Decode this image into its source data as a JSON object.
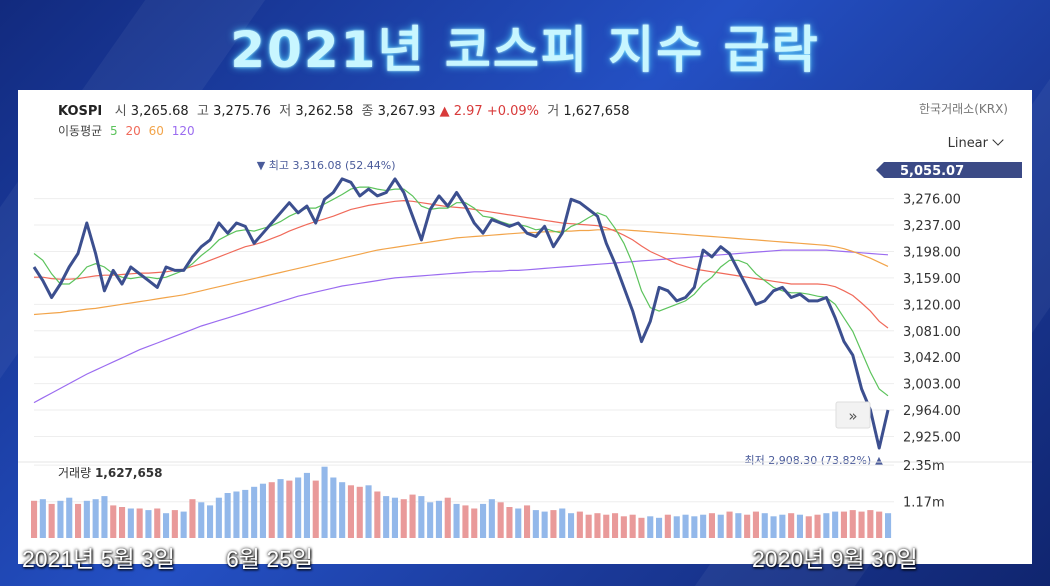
{
  "title": "2021년 코스피 지수 급락",
  "header": {
    "name": "KOSPI",
    "open_label": "시",
    "open": "3,265.68",
    "high_label": "고",
    "high": "3,275.76",
    "low_label": "저",
    "low": "3,262.58",
    "close_label": "종",
    "close": "3,267.93",
    "change": "▲ 2.97 +0.09%",
    "volume_label": "거",
    "volume": "1,627,658",
    "source": "한국거래소(KRX)"
  },
  "ma_legend": {
    "label": "이동평균",
    "items": [
      "5",
      "20",
      "60",
      "120"
    ],
    "colors": [
      "#5cc35c",
      "#f06a5a",
      "#f2a44a",
      "#9b6cf0"
    ]
  },
  "scale_mode": "Linear",
  "captions": {
    "start": "2021년 5월 3일",
    "mid": "6월 25일",
    "end": "2020년 9월 30일"
  },
  "chart_data": {
    "type": "line",
    "price_ticks": [
      "3,276.00",
      "3,237.00",
      "3,198.00",
      "3,159.00",
      "3,120.00",
      "3,081.00",
      "3,042.00",
      "3,003.00",
      "2,964.00",
      "2,925.00"
    ],
    "price_tick_values": [
      3276,
      3237,
      3198,
      3159,
      3120,
      3081,
      3042,
      3003,
      2964,
      2925
    ],
    "current_label": "5,055.07",
    "max_label": "▼ 최고 3,316.08 (52.44%)",
    "min_label": "최저 2,908.30 (73.82%) ▲",
    "ylim": [
      2908,
      3330
    ],
    "close": [
      3175,
      3155,
      3130,
      3150,
      3175,
      3195,
      3240,
      3195,
      3140,
      3170,
      3150,
      3175,
      3165,
      3155,
      3145,
      3175,
      3170,
      3170,
      3190,
      3205,
      3215,
      3240,
      3225,
      3240,
      3235,
      3210,
      3225,
      3240,
      3255,
      3270,
      3255,
      3265,
      3240,
      3275,
      3285,
      3305,
      3300,
      3280,
      3290,
      3280,
      3285,
      3305,
      3285,
      3250,
      3215,
      3260,
      3280,
      3265,
      3285,
      3265,
      3240,
      3225,
      3245,
      3240,
      3235,
      3240,
      3225,
      3220,
      3235,
      3205,
      3225,
      3275,
      3270,
      3260,
      3250,
      3210,
      3180,
      3145,
      3110,
      3065,
      3095,
      3145,
      3140,
      3125,
      3130,
      3145,
      3200,
      3190,
      3205,
      3195,
      3170,
      3145,
      3120,
      3125,
      3140,
      3145,
      3130,
      3135,
      3125,
      3125,
      3130,
      3100,
      3065,
      3045,
      2995,
      2964,
      2908,
      2964
    ],
    "ma5": [
      3195,
      3185,
      3165,
      3150,
      3150,
      3160,
      3175,
      3180,
      3175,
      3165,
      3160,
      3158,
      3160,
      3160,
      3158,
      3160,
      3165,
      3170,
      3180,
      3192,
      3202,
      3215,
      3222,
      3228,
      3230,
      3228,
      3232,
      3236,
      3242,
      3250,
      3256,
      3262,
      3262,
      3268,
      3275,
      3282,
      3290,
      3293,
      3293,
      3290,
      3288,
      3290,
      3290,
      3280,
      3265,
      3260,
      3262,
      3262,
      3270,
      3270,
      3262,
      3250,
      3248,
      3242,
      3238,
      3238,
      3235,
      3230,
      3232,
      3228,
      3225,
      3235,
      3240,
      3248,
      3255,
      3250,
      3232,
      3210,
      3180,
      3140,
      3115,
      3110,
      3115,
      3120,
      3125,
      3135,
      3150,
      3160,
      3175,
      3185,
      3185,
      3180,
      3165,
      3155,
      3145,
      3140,
      3137,
      3137,
      3135,
      3132,
      3130,
      3120,
      3100,
      3080,
      3050,
      3020,
      2995,
      2985
    ],
    "ma20": [
      3160,
      3160,
      3158,
      3157,
      3157,
      3158,
      3160,
      3162,
      3163,
      3163,
      3164,
      3165,
      3166,
      3166,
      3167,
      3168,
      3170,
      3172,
      3176,
      3180,
      3185,
      3190,
      3195,
      3200,
      3205,
      3208,
      3212,
      3217,
      3222,
      3228,
      3233,
      3238,
      3242,
      3246,
      3250,
      3255,
      3260,
      3263,
      3266,
      3268,
      3270,
      3272,
      3273,
      3272,
      3270,
      3268,
      3266,
      3264,
      3263,
      3262,
      3260,
      3258,
      3256,
      3254,
      3252,
      3250,
      3248,
      3246,
      3244,
      3242,
      3240,
      3239,
      3238,
      3237,
      3236,
      3233,
      3228,
      3222,
      3215,
      3206,
      3198,
      3192,
      3186,
      3180,
      3176,
      3172,
      3170,
      3168,
      3166,
      3164,
      3162,
      3160,
      3158,
      3156,
      3154,
      3152,
      3150,
      3150,
      3150,
      3150,
      3149,
      3146,
      3140,
      3133,
      3122,
      3110,
      3095,
      3085
    ],
    "ma60": [
      3105,
      3106,
      3107,
      3108,
      3110,
      3111,
      3113,
      3114,
      3116,
      3118,
      3120,
      3122,
      3124,
      3126,
      3128,
      3130,
      3132,
      3134,
      3137,
      3140,
      3143,
      3146,
      3149,
      3152,
      3155,
      3158,
      3161,
      3164,
      3167,
      3170,
      3173,
      3176,
      3179,
      3182,
      3185,
      3188,
      3191,
      3194,
      3197,
      3200,
      3202,
      3204,
      3206,
      3208,
      3210,
      3212,
      3214,
      3216,
      3218,
      3219,
      3220,
      3221,
      3222,
      3223,
      3224,
      3225,
      3226,
      3226,
      3227,
      3227,
      3228,
      3228,
      3229,
      3229,
      3230,
      3230,
      3230,
      3230,
      3229,
      3228,
      3227,
      3226,
      3225,
      3224,
      3223,
      3222,
      3221,
      3220,
      3219,
      3218,
      3217,
      3216,
      3215,
      3214,
      3213,
      3212,
      3211,
      3210,
      3209,
      3208,
      3207,
      3205,
      3202,
      3198,
      3193,
      3188,
      3182,
      3176
    ],
    "ma120": [
      2975,
      2982,
      2989,
      2996,
      3003,
      3010,
      3017,
      3023,
      3029,
      3035,
      3041,
      3047,
      3053,
      3058,
      3063,
      3068,
      3073,
      3078,
      3083,
      3088,
      3092,
      3096,
      3100,
      3104,
      3108,
      3112,
      3116,
      3120,
      3124,
      3128,
      3132,
      3135,
      3138,
      3141,
      3144,
      3147,
      3149,
      3151,
      3153,
      3155,
      3157,
      3159,
      3160,
      3161,
      3162,
      3163,
      3164,
      3165,
      3166,
      3167,
      3168,
      3168,
      3169,
      3169,
      3170,
      3170,
      3171,
      3172,
      3173,
      3174,
      3175,
      3176,
      3177,
      3178,
      3179,
      3180,
      3181,
      3182,
      3183,
      3184,
      3185,
      3186,
      3187,
      3188,
      3189,
      3190,
      3191,
      3192,
      3193,
      3194,
      3195,
      3196,
      3197,
      3198,
      3199,
      3200,
      3200,
      3200,
      3200,
      3200,
      3200,
      3199,
      3198,
      3197,
      3196,
      3195,
      3194,
      3193
    ],
    "volume_label": "거래량",
    "volume_value": "1,627,658",
    "volume_ticks": [
      "2.35m",
      "1.17m"
    ],
    "volume_tick_values": [
      2.35,
      1.17
    ],
    "volume": [
      1.2,
      1.25,
      1.1,
      1.2,
      1.3,
      1.1,
      1.2,
      1.25,
      1.35,
      1.05,
      1.0,
      0.95,
      0.95,
      0.9,
      0.95,
      0.8,
      0.9,
      0.85,
      1.25,
      1.15,
      1.05,
      1.3,
      1.45,
      1.5,
      1.55,
      1.65,
      1.75,
      1.8,
      1.9,
      1.85,
      1.95,
      2.1,
      1.85,
      2.3,
      1.95,
      1.8,
      1.7,
      1.65,
      1.7,
      1.5,
      1.35,
      1.3,
      1.25,
      1.4,
      1.35,
      1.15,
      1.2,
      1.3,
      1.1,
      1.05,
      0.95,
      1.1,
      1.25,
      1.15,
      1.0,
      0.95,
      1.05,
      0.9,
      0.85,
      0.9,
      0.95,
      0.8,
      0.85,
      0.75,
      0.8,
      0.75,
      0.8,
      0.7,
      0.75,
      0.65,
      0.7,
      0.65,
      0.75,
      0.7,
      0.75,
      0.7,
      0.75,
      0.8,
      0.75,
      0.85,
      0.8,
      0.75,
      0.85,
      0.8,
      0.7,
      0.75,
      0.8,
      0.75,
      0.7,
      0.75,
      0.8,
      0.85,
      0.85,
      0.9,
      0.85,
      0.9,
      0.85,
      0.8
    ],
    "volume_up": [
      true,
      false,
      true,
      false,
      false,
      true,
      false,
      false,
      false,
      true,
      true,
      false,
      true,
      false,
      true,
      false,
      true,
      false,
      true,
      false,
      false,
      false,
      false,
      false,
      false,
      false,
      false,
      true,
      false,
      true,
      false,
      false,
      true,
      false,
      false,
      false,
      true,
      true,
      false,
      true,
      false,
      false,
      true,
      true,
      false,
      false,
      false,
      true,
      false,
      true,
      true,
      false,
      false,
      true,
      true,
      false,
      true,
      false,
      false,
      true,
      false,
      false,
      true,
      true,
      true,
      true,
      true,
      true,
      true,
      true,
      false,
      false,
      true,
      false,
      false,
      false,
      false,
      true,
      false,
      true,
      false,
      true,
      true,
      false,
      false,
      false,
      true,
      false,
      true,
      true,
      false,
      false,
      true,
      true,
      true,
      true,
      true,
      false
    ]
  }
}
